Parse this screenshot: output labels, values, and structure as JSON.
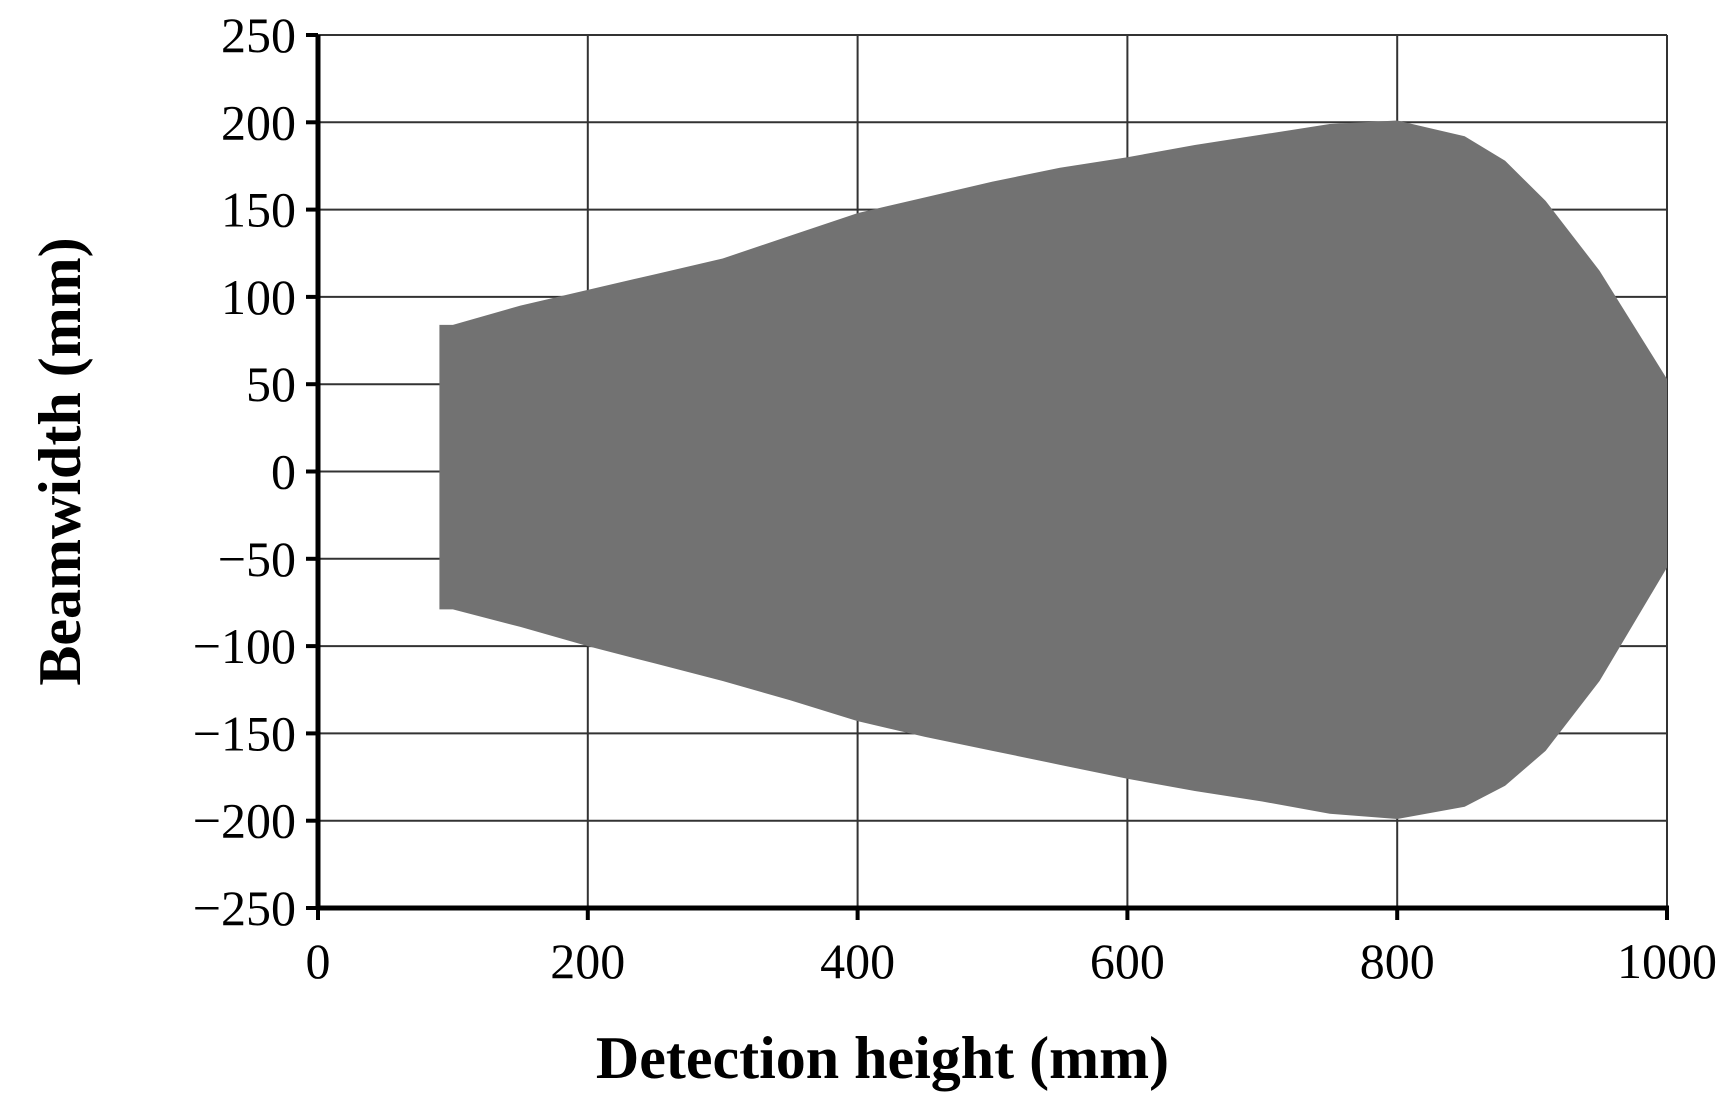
{
  "chart_data": {
    "type": "area",
    "title": "",
    "xlabel": "Detection height (mm)",
    "ylabel": "Beamwidth (mm)",
    "xlim": [
      0,
      1000
    ],
    "ylim": [
      -250,
      250
    ],
    "x_ticks": [
      0,
      200,
      400,
      600,
      800,
      1000
    ],
    "y_ticks": [
      250,
      200,
      150,
      100,
      50,
      0,
      -50,
      -100,
      -150,
      -200,
      -250
    ],
    "x_tick_labels": [
      "0",
      "200",
      "400",
      "600",
      "800",
      "1000"
    ],
    "y_tick_labels": [
      "250",
      "200",
      "150",
      "100",
      "50",
      "0",
      "−50",
      "−100",
      "−150",
      "−200",
      "−250"
    ],
    "grid": true,
    "legend": "none",
    "fill_color": "#727272",
    "upper": [
      [
        90,
        84
      ],
      [
        100,
        84
      ],
      [
        150,
        95
      ],
      [
        200,
        104
      ],
      [
        250,
        113
      ],
      [
        300,
        122
      ],
      [
        350,
        135
      ],
      [
        400,
        148
      ],
      [
        450,
        157
      ],
      [
        500,
        166
      ],
      [
        550,
        174
      ],
      [
        600,
        180
      ],
      [
        650,
        187
      ],
      [
        700,
        193
      ],
      [
        750,
        199
      ],
      [
        800,
        201
      ],
      [
        850,
        192
      ],
      [
        880,
        178
      ],
      [
        910,
        155
      ],
      [
        950,
        115
      ],
      [
        1000,
        53
      ]
    ],
    "lower": [
      [
        90,
        -79
      ],
      [
        100,
        -79
      ],
      [
        150,
        -89
      ],
      [
        200,
        -100
      ],
      [
        250,
        -110
      ],
      [
        300,
        -120
      ],
      [
        350,
        -131
      ],
      [
        400,
        -143
      ],
      [
        450,
        -152
      ],
      [
        500,
        -160
      ],
      [
        550,
        -168
      ],
      [
        600,
        -176
      ],
      [
        650,
        -183
      ],
      [
        700,
        -189
      ],
      [
        750,
        -196
      ],
      [
        800,
        -199
      ],
      [
        850,
        -192
      ],
      [
        880,
        -180
      ],
      [
        910,
        -160
      ],
      [
        950,
        -120
      ],
      [
        1000,
        -55
      ]
    ]
  }
}
